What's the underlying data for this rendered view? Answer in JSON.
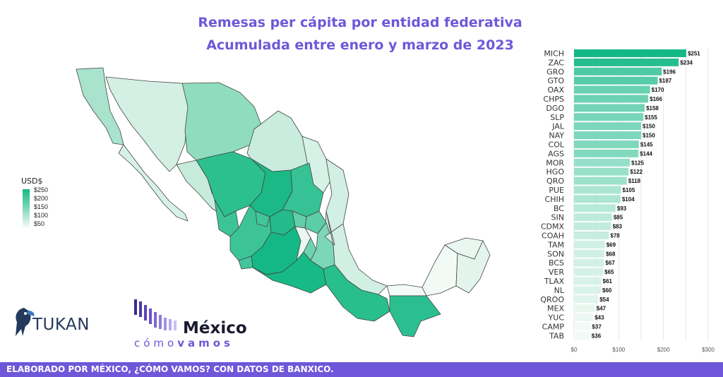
{
  "title_line1": "Remesas per cápita por entidad federativa",
  "title_line2": "Acumulada entre enero y marzo de 2023",
  "legend": {
    "title": "USD$",
    "ticks": [
      "$250",
      "$200",
      "$150",
      "$100",
      "$50"
    ]
  },
  "colors": {
    "accent": "#6f57d9",
    "high": "#14b886",
    "low": "#f2faf6"
  },
  "logos": {
    "tukan": "TUKAN",
    "mcv_main": "México",
    "mcv_sub_a": "cómo",
    "mcv_sub_b": "vamos"
  },
  "footer": "ELABORADO POR MÉXICO, ¿CÓMO VAMOS? CON DATOS DE BANXICO.",
  "chart_data": {
    "type": "bar",
    "orientation": "horizontal",
    "categories": [
      "MICH",
      "ZAC",
      "GRO",
      "GTO",
      "OAX",
      "CHPS",
      "DGO",
      "SLP",
      "JAL",
      "NAY",
      "COL",
      "AGS",
      "MOR",
      "HGO",
      "QRO",
      "PUE",
      "CHIH",
      "BC",
      "SIN",
      "CDMX",
      "COAH",
      "TAM",
      "SON",
      "BCS",
      "VER",
      "TLAX",
      "NL",
      "QROO",
      "MEX",
      "YUC",
      "CAMP",
      "TAB"
    ],
    "values": [
      251,
      234,
      196,
      187,
      170,
      166,
      158,
      155,
      150,
      150,
      145,
      144,
      125,
      122,
      118,
      105,
      104,
      93,
      85,
      83,
      78,
      69,
      68,
      67,
      65,
      61,
      60,
      54,
      47,
      43,
      37,
      36
    ],
    "labels": [
      "$251",
      "$234",
      "$196",
      "$187",
      "$170",
      "$166",
      "$158",
      "$155",
      "$150",
      "$150",
      "$145",
      "$144",
      "$125",
      "$122",
      "$118",
      "$105",
      "$104",
      "$93",
      "$85",
      "$83",
      "$78",
      "$69",
      "$68",
      "$67",
      "$65",
      "$61",
      "$60",
      "$54",
      "$47",
      "$43",
      "$37",
      "$36"
    ],
    "xticks": [
      "$0",
      "$100",
      "$200",
      "$300"
    ],
    "xlim": [
      0,
      300
    ],
    "grid": true
  }
}
